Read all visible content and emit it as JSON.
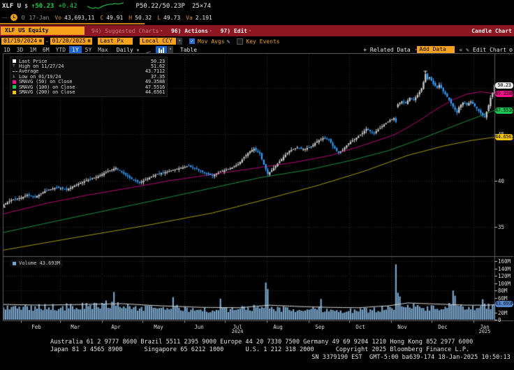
{
  "titlebar": {
    "ticker": "XLF U",
    "currency": "$",
    "last": "↑50.23",
    "change": "+0.42",
    "bid_ask": "P50.22/50.23P",
    "lot_sizes": "25×74",
    "sparkline": [
      5,
      3,
      2,
      3,
      2,
      4,
      6,
      7,
      8,
      8,
      9,
      8,
      9,
      10
    ],
    "row2": {
      "open_label": "O",
      "date": "17-Jan",
      "vo_label": "Vo",
      "vo": "43,693,11",
      "c_label": "C",
      "c": "49.91",
      "h_label": "H",
      "h": "50.32",
      "l_label": "L",
      "l": "49.73",
      "va_label": "Va",
      "va": "2.191"
    }
  },
  "menubar": {
    "security": "XLF US Equity",
    "suggested": "94) Suggested Charts",
    "actions": "96) Actions",
    "edit": "97) Edit",
    "chart_type": "Candle Chart"
  },
  "toolbar": {
    "date_from": "01/19/2024",
    "date_sep": "-",
    "date_to": "01/20/2025",
    "price_field": "Last Px",
    "currency": "Local CCY",
    "mov_avgs": "Mov Avgs",
    "key_events": "Key Events"
  },
  "periodbar": {
    "ranges": [
      "1D",
      "3D",
      "1M",
      "6M",
      "YTD",
      "1Y",
      "5Y",
      "Max"
    ],
    "selected": "1Y",
    "frequency": "Daily",
    "table": "Table",
    "related": "+ Related Data",
    "add_data": "Add Data",
    "collapse": "«",
    "edit_chart": "Edit Chart"
  },
  "legend": {
    "rows": [
      {
        "marker": "square",
        "color": "#ffffff",
        "label": "Last Price",
        "value": "50.23"
      },
      {
        "marker": "high",
        "color": "#cccccc",
        "label": "High on 11/27/24",
        "value": "51.62"
      },
      {
        "marker": "avg",
        "color": "#cccccc",
        "label": "Average",
        "value": "43.7112"
      },
      {
        "marker": "low",
        "color": "#cccccc",
        "label": "Low on 01/19/24",
        "value": "37.35"
      },
      {
        "marker": "square",
        "color": "#ff0d8c",
        "label": "SMAVG (50)  on Close",
        "value": "49.3588"
      },
      {
        "marker": "square",
        "color": "#19c553",
        "label": "SMAVG (100)  on Close",
        "value": "47.5516"
      },
      {
        "marker": "square",
        "color": "#f5c400",
        "label": "SMAVG (200)  on Close",
        "value": "44.6561"
      }
    ]
  },
  "volume_legend": {
    "label": "Volume",
    "value": "43.693M"
  },
  "chart_data": {
    "type": "candle",
    "title": "XLF US Equity — 1Y Daily Candle Chart",
    "range": "01/19/2024 - 01/20/2025",
    "n_candles": 250,
    "last": 50.23,
    "high": {
      "date": "11/27/24",
      "value": 51.62
    },
    "low": {
      "date": "01/19/24",
      "value": 37.35
    },
    "average": 43.7112,
    "price_axis": {
      "ticks": [
        45,
        40,
        35
      ],
      "domain": [
        31.9,
        53.7
      ]
    },
    "volume_axis": {
      "ticks": [
        {
          "label": "160M",
          "v": 160
        },
        {
          "label": "140M",
          "v": 140
        },
        {
          "label": "120M",
          "v": 120
        },
        {
          "label": "100M",
          "v": 100
        },
        {
          "label": "80M",
          "v": 80
        },
        {
          "label": "60M",
          "v": 60
        },
        {
          "label": "20M",
          "v": 20
        },
        {
          "label": "0",
          "v": 0
        }
      ]
    },
    "tags": [
      {
        "name": "last-price-tag",
        "text": "50.23",
        "at": 50.23,
        "pane": "price",
        "bg": "#e8e8e8",
        "fg": "#000000"
      },
      {
        "name": "sma50-tag",
        "text": "49.3588",
        "at": 49.3588,
        "pane": "price",
        "bg": "#ff0d8c",
        "fg": "#000000"
      },
      {
        "name": "sma100-tag",
        "text": "47.5516",
        "at": 47.5516,
        "pane": "price",
        "bg": "#19c553",
        "fg": "#000000"
      },
      {
        "name": "sma200-tag",
        "text": "44.6561",
        "at": 44.6561,
        "pane": "price",
        "bg": "#f5c400",
        "fg": "#000000"
      },
      {
        "name": "volume-tag",
        "text": "43.693M",
        "at": 43.693,
        "pane": "volume",
        "bg": "#5588cc",
        "fg": "#00122a"
      }
    ],
    "close_path": [
      [
        0,
        37.4
      ],
      [
        4,
        37.9
      ],
      [
        9,
        38.15
      ],
      [
        12,
        38.45
      ],
      [
        16,
        38.2
      ],
      [
        21,
        38.85
      ],
      [
        27,
        39.25
      ],
      [
        32,
        39.0
      ],
      [
        37,
        39.55
      ],
      [
        42,
        40.0
      ],
      [
        48,
        40.45
      ],
      [
        53,
        41.0
      ],
      [
        57,
        41.35
      ],
      [
        60,
        40.9
      ],
      [
        65,
        40.15
      ],
      [
        69,
        39.75
      ],
      [
        73,
        40.2
      ],
      [
        78,
        40.7
      ],
      [
        83,
        40.95
      ],
      [
        88,
        41.25
      ],
      [
        94,
        41.55
      ],
      [
        97,
        41.3
      ],
      [
        103,
        40.75
      ],
      [
        106,
        40.5
      ],
      [
        110,
        40.95
      ],
      [
        115,
        41.3
      ],
      [
        119,
        41.75
      ],
      [
        122,
        42.5
      ],
      [
        125,
        43.15
      ],
      [
        127,
        43.4
      ],
      [
        130,
        42.9
      ],
      [
        132,
        41.7
      ],
      [
        134,
        40.7
      ],
      [
        136,
        41.1
      ],
      [
        139,
        41.8
      ],
      [
        142,
        42.55
      ],
      [
        145,
        43.2
      ],
      [
        149,
        43.55
      ],
      [
        152,
        43.35
      ],
      [
        156,
        43.65
      ],
      [
        159,
        44.2
      ],
      [
        162,
        44.55
      ],
      [
        165,
        44.45
      ],
      [
        167,
        43.7
      ],
      [
        170,
        42.95
      ],
      [
        172,
        43.3
      ],
      [
        175,
        44.0
      ],
      [
        179,
        44.6
      ],
      [
        182,
        45.1
      ],
      [
        184,
        45.55
      ],
      [
        186,
        45.3
      ],
      [
        188,
        45.1
      ],
      [
        190,
        45.5
      ],
      [
        193,
        46.0
      ],
      [
        196,
        46.5
      ],
      [
        198,
        46.7
      ],
      [
        199,
        46.3
      ],
      [
        200,
        48.2
      ],
      [
        202,
        48.5
      ],
      [
        204,
        48.3
      ],
      [
        206,
        48.9
      ],
      [
        208,
        48.7
      ],
      [
        210,
        49.2
      ],
      [
        212,
        49.9
      ],
      [
        213,
        50.6
      ],
      [
        214,
        51.45
      ],
      [
        215,
        50.9
      ],
      [
        216,
        51.1
      ],
      [
        218,
        50.4
      ],
      [
        220,
        49.95
      ],
      [
        221,
        50.3
      ],
      [
        223,
        49.6
      ],
      [
        225,
        49.0
      ],
      [
        227,
        48.3
      ],
      [
        229,
        47.6
      ],
      [
        230,
        47.3
      ],
      [
        231,
        47.9
      ],
      [
        233,
        48.4
      ],
      [
        235,
        48.15
      ],
      [
        237,
        48.5
      ],
      [
        239,
        48.0
      ],
      [
        241,
        47.5
      ],
      [
        243,
        47.0
      ],
      [
        244,
        46.85
      ],
      [
        245,
        47.4
      ],
      [
        246,
        48.1
      ],
      [
        247,
        48.9
      ],
      [
        248,
        49.4
      ],
      [
        249,
        50.23
      ]
    ],
    "sma": [
      {
        "period": 50,
        "last": 49.3588,
        "color": "#c2077c",
        "path": [
          [
            0,
            36.4
          ],
          [
            21,
            37.5
          ],
          [
            42,
            38.4
          ],
          [
            64,
            39.2
          ],
          [
            85,
            40.0
          ],
          [
            106,
            40.65
          ],
          [
            130,
            41.4
          ],
          [
            149,
            42.0
          ],
          [
            166,
            42.7
          ],
          [
            184,
            43.9
          ],
          [
            198,
            44.9
          ],
          [
            205,
            45.7
          ],
          [
            212,
            46.6
          ],
          [
            219,
            47.6
          ],
          [
            228,
            48.7
          ],
          [
            235,
            49.3
          ],
          [
            242,
            49.55
          ],
          [
            249,
            49.3588
          ]
        ]
      },
      {
        "period": 100,
        "last": 47.5516,
        "color": "#159a43",
        "path": [
          [
            0,
            34.4
          ],
          [
            35,
            36.0
          ],
          [
            71,
            37.6
          ],
          [
            106,
            39.2
          ],
          [
            130,
            40.3
          ],
          [
            156,
            41.2
          ],
          [
            177,
            42.2
          ],
          [
            195,
            43.2
          ],
          [
            212,
            44.5
          ],
          [
            230,
            46.0
          ],
          [
            240,
            46.8
          ],
          [
            249,
            47.5516
          ]
        ]
      },
      {
        "period": 200,
        "last": 44.6561,
        "color": "#b0a000",
        "path": [
          [
            0,
            32.5
          ],
          [
            35,
            33.8
          ],
          [
            71,
            35.1
          ],
          [
            106,
            36.5
          ],
          [
            130,
            37.8
          ],
          [
            160,
            39.5
          ],
          [
            183,
            41.0
          ],
          [
            205,
            42.7
          ],
          [
            223,
            43.7
          ],
          [
            237,
            44.3
          ],
          [
            249,
            44.6561
          ]
        ]
      }
    ],
    "volume": {
      "unit": "M shares",
      "last": 43.693,
      "base": [
        [
          0,
          36
        ],
        [
          15,
          33
        ],
        [
          30,
          35
        ],
        [
          45,
          38
        ],
        [
          56,
          44
        ],
        [
          70,
          30
        ],
        [
          85,
          34
        ],
        [
          100,
          26
        ],
        [
          115,
          28
        ],
        [
          130,
          34
        ],
        [
          140,
          30
        ],
        [
          150,
          26
        ],
        [
          160,
          30
        ],
        [
          170,
          24
        ],
        [
          180,
          26
        ],
        [
          190,
          28
        ],
        [
          200,
          40
        ],
        [
          210,
          34
        ],
        [
          220,
          30
        ],
        [
          228,
          40
        ],
        [
          235,
          28
        ],
        [
          243,
          34
        ],
        [
          249,
          40
        ]
      ],
      "spikes": [
        [
          56,
          76
        ],
        [
          86,
          62
        ],
        [
          110,
          58
        ],
        [
          133,
          102
        ],
        [
          134,
          84
        ],
        [
          161,
          57
        ],
        [
          199,
          152
        ],
        [
          200,
          74
        ],
        [
          201,
          64
        ],
        [
          228,
          80
        ],
        [
          229,
          66
        ],
        [
          243,
          56
        ],
        [
          249,
          43.693
        ]
      ],
      "ma": [
        [
          0,
          42
        ],
        [
          20,
          40
        ],
        [
          40,
          42
        ],
        [
          60,
          44
        ],
        [
          80,
          38
        ],
        [
          100,
          34
        ],
        [
          120,
          33
        ],
        [
          135,
          40
        ],
        [
          150,
          36
        ],
        [
          165,
          34
        ],
        [
          180,
          33
        ],
        [
          195,
          38
        ],
        [
          205,
          46
        ],
        [
          215,
          44
        ],
        [
          225,
          42
        ],
        [
          235,
          40
        ],
        [
          245,
          40
        ],
        [
          249,
          41
        ]
      ]
    },
    "months": [
      {
        "label": "Feb",
        "f": 0.0669
      },
      {
        "label": "Mar",
        "f": 0.1465
      },
      {
        "label": "Apr",
        "f": 0.229
      },
      {
        "label": "May",
        "f": 0.3158
      },
      {
        "label": "Jun",
        "f": 0.3983
      },
      {
        "label": "Jul",
        "f": 0.4765
      },
      {
        "label": "Aug",
        "f": 0.559
      },
      {
        "label": "Sep",
        "f": 0.6444
      },
      {
        "label": "Oct",
        "f": 0.727
      },
      {
        "label": "Nov",
        "f": 0.8122
      },
      {
        "label": "Dec",
        "f": 0.8948
      },
      {
        "label": "Jan",
        "f": 0.98
      }
    ],
    "month_ticks": [
      0.0356,
      0.1152,
      0.2006,
      0.2831,
      0.3684,
      0.4509,
      0.5363,
      0.6217,
      0.7042,
      0.7895,
      0.872,
      0.9573
    ],
    "years": [
      {
        "label": "2024",
        "f": 0.4765
      },
      {
        "label": "2025",
        "f": 0.98
      }
    ],
    "colors": {
      "up": "#d4d4d4",
      "down": "#33a1ff",
      "volume_bar": "#7ba7cc",
      "volume_ma": "#dcdcdc",
      "grid": "#2f2f2f",
      "frame": "#5e5e5e"
    }
  },
  "footer": {
    "line1": "Australia 61 2 9777 8600 Brazil 5511 2395 9000 Europe 44 20 7330 7500 Germany 49 69 9204 1210 Hong Kong 852 2977 6000",
    "line2": "Japan 81 3 4565 8900      Singapore 65 6212 1000      U.S. 1 212 318 2000      Copyright 2025 Bloomberg Finance L.P.",
    "line3": "SN 3379190 EST  GMT-5:00 ba639-174 18-Jan-2025 10:50:13 "
  }
}
